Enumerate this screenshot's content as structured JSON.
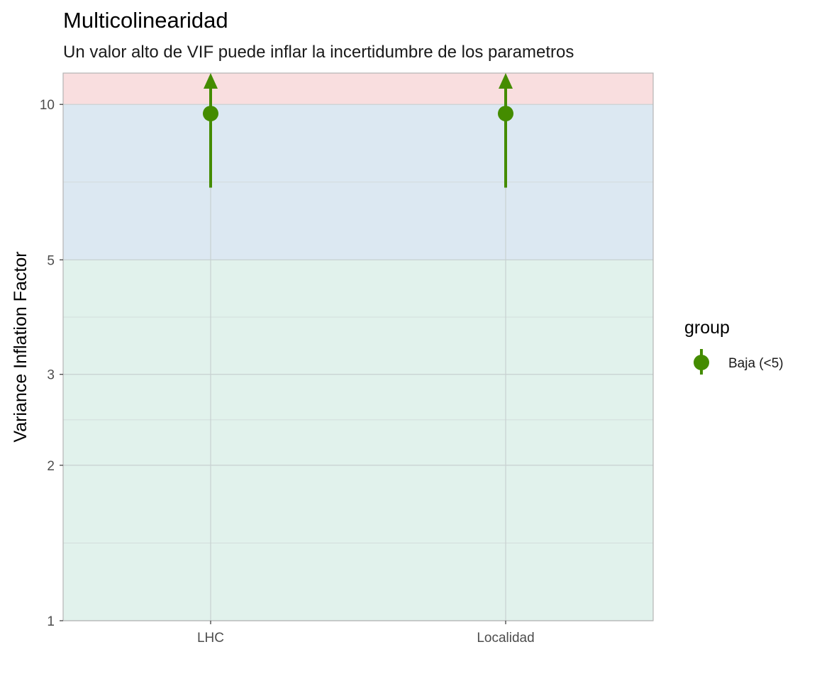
{
  "chart_data": {
    "type": "scatter",
    "title": "Multicolinearidad",
    "subtitle": "Un valor alto de VIF puede inflar la incertidumbre de los parametros",
    "xlabel": "",
    "ylabel": "Variance Inflation Factor",
    "y_scale": "log10",
    "ylim": [
      1,
      11.5
    ],
    "y_ticks": [
      1,
      2,
      3,
      5,
      10
    ],
    "y_minor_ticks": [
      1.414,
      2.449,
      3.873,
      7.071
    ],
    "categories": [
      "LHC",
      "Localidad"
    ],
    "series": [
      {
        "name": "Baja (<5)",
        "color": "#448c00",
        "points": [
          {
            "x": "LHC",
            "vif": 9.6,
            "ci_low": 6.9,
            "ci_high": 11.5,
            "ci_high_extends": true
          },
          {
            "x": "Localidad",
            "vif": 9.6,
            "ci_low": 6.9,
            "ci_high": 11.5,
            "ci_high_extends": true
          }
        ]
      }
    ],
    "zones": [
      {
        "from": 1,
        "to": 5,
        "color": "#e1f2ec"
      },
      {
        "from": 5,
        "to": 10,
        "color": "#dce8f2"
      },
      {
        "from": 10,
        "to": 11.5,
        "color": "#f9dedf"
      }
    ],
    "grid": true,
    "legend": {
      "title": "group",
      "position": "right",
      "entries": [
        "Baja (<5)"
      ]
    }
  }
}
